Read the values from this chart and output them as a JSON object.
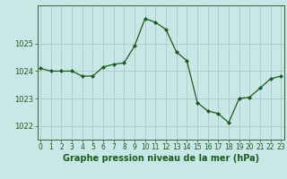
{
  "x": [
    0,
    1,
    2,
    3,
    4,
    5,
    6,
    7,
    8,
    9,
    10,
    11,
    12,
    13,
    14,
    15,
    16,
    17,
    18,
    19,
    20,
    21,
    22,
    23
  ],
  "y": [
    1024.1,
    1024.0,
    1024.0,
    1024.0,
    1023.82,
    1023.82,
    1024.15,
    1024.25,
    1024.3,
    1024.92,
    1025.92,
    1025.78,
    1025.52,
    1024.7,
    1024.38,
    1022.85,
    1022.55,
    1022.45,
    1022.12,
    1023.0,
    1023.05,
    1023.38,
    1023.72,
    1023.82
  ],
  "line_color": "#1a5c1a",
  "marker": "D",
  "marker_size": 2.0,
  "bg_color": "#c8e8e8",
  "grid_color": "#b0c8c8",
  "xlabel": "Graphe pression niveau de la mer (hPa)",
  "xlabel_color": "#1a5c1a",
  "xlabel_fontsize": 7.0,
  "tick_color": "#1a5c1a",
  "ytick_fontsize": 6.0,
  "xtick_fontsize": 5.5,
  "ylim": [
    1021.5,
    1026.4
  ],
  "yticks": [
    1022,
    1023,
    1024,
    1025
  ],
  "xlim": [
    -0.3,
    23.3
  ],
  "xticks": [
    0,
    1,
    2,
    3,
    4,
    5,
    6,
    7,
    8,
    9,
    10,
    11,
    12,
    13,
    14,
    15,
    16,
    17,
    18,
    19,
    20,
    21,
    22,
    23
  ],
  "spine_color": "#336633"
}
